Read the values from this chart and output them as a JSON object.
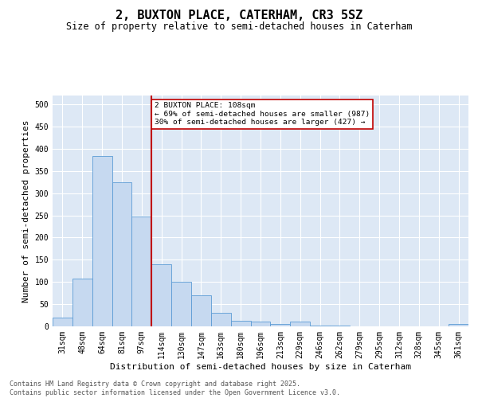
{
  "title": "2, BUXTON PLACE, CATERHAM, CR3 5SZ",
  "subtitle": "Size of property relative to semi-detached houses in Caterham",
  "xlabel": "Distribution of semi-detached houses by size in Caterham",
  "ylabel": "Number of semi-detached properties",
  "categories": [
    "31sqm",
    "48sqm",
    "64sqm",
    "81sqm",
    "97sqm",
    "114sqm",
    "130sqm",
    "147sqm",
    "163sqm",
    "180sqm",
    "196sqm",
    "213sqm",
    "229sqm",
    "246sqm",
    "262sqm",
    "279sqm",
    "295sqm",
    "312sqm",
    "328sqm",
    "345sqm",
    "361sqm"
  ],
  "values": [
    20,
    107,
    383,
    325,
    248,
    140,
    100,
    70,
    30,
    12,
    10,
    5,
    10,
    2,
    2,
    0,
    0,
    0,
    0,
    0,
    5
  ],
  "bar_color": "#c6d9f0",
  "bar_edge_color": "#5b9bd5",
  "line_x_index": 5,
  "line_color": "#c00000",
  "annotation_text": "2 BUXTON PLACE: 108sqm\n← 69% of semi-detached houses are smaller (987)\n30% of semi-detached houses are larger (427) →",
  "annotation_box_color": "#ffffff",
  "annotation_box_edge": "#c00000",
  "footer_text": "Contains HM Land Registry data © Crown copyright and database right 2025.\nContains public sector information licensed under the Open Government Licence v3.0.",
  "bg_color": "#dde8f5",
  "ylim": [
    0,
    520
  ],
  "yticks": [
    0,
    50,
    100,
    150,
    200,
    250,
    300,
    350,
    400,
    450,
    500
  ],
  "title_fontsize": 11,
  "subtitle_fontsize": 8.5,
  "tick_fontsize": 7,
  "label_fontsize": 8,
  "footer_fontsize": 6
}
